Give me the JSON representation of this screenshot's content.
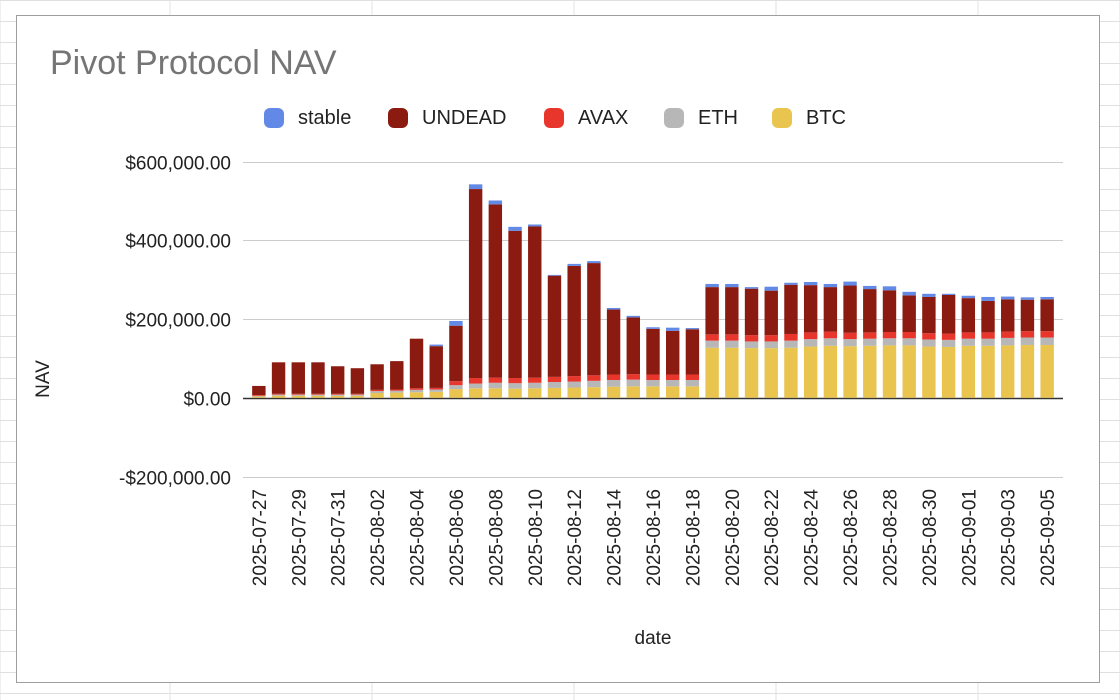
{
  "chart_data": {
    "type": "bar",
    "stacked": true,
    "title": "Pivot Protocol NAV",
    "xlabel": "date",
    "ylabel": "NAV",
    "ylim": [
      -200000,
      600000
    ],
    "yticks": [
      -200000,
      0,
      200000,
      400000,
      600000
    ],
    "ytick_labels": [
      "-$200,000.00",
      "$0.00",
      "$200,000.00",
      "$400,000.00",
      "$600,000.00"
    ],
    "grid": true,
    "legend_position": "top",
    "legend": [
      "stable",
      "UNDEAD",
      "AVAX",
      "ETH",
      "BTC"
    ],
    "x_tick_labels": [
      "2025-07-27",
      "2025-07-29",
      "2025-07-31",
      "2025-08-02",
      "2025-08-04",
      "2025-08-06",
      "2025-08-08",
      "2025-08-10",
      "2025-08-12",
      "2025-08-14",
      "2025-08-16",
      "2025-08-18",
      "2025-08-20",
      "2025-08-22",
      "2025-08-24",
      "2025-08-26",
      "2025-08-28",
      "2025-08-30",
      "2025-09-01",
      "2025-09-03",
      "2025-09-05"
    ],
    "categories": [
      "2025-07-27",
      "2025-07-28",
      "2025-07-29",
      "2025-07-30",
      "2025-07-31",
      "2025-08-01",
      "2025-08-02",
      "2025-08-03",
      "2025-08-04",
      "2025-08-05",
      "2025-08-06",
      "2025-08-07",
      "2025-08-08",
      "2025-08-09",
      "2025-08-10",
      "2025-08-11",
      "2025-08-12",
      "2025-08-13",
      "2025-08-14",
      "2025-08-15",
      "2025-08-16",
      "2025-08-17",
      "2025-08-18",
      "2025-08-19",
      "2025-08-20",
      "2025-08-21",
      "2025-08-22",
      "2025-08-23",
      "2025-08-24",
      "2025-08-25",
      "2025-08-26",
      "2025-08-27",
      "2025-08-28",
      "2025-08-29",
      "2025-08-30",
      "2025-08-31",
      "2025-09-01",
      "2025-09-02",
      "2025-09-03",
      "2025-09-04",
      "2025-09-05"
    ],
    "series": [
      {
        "name": "BTC",
        "color": "#e9c44f",
        "values": [
          3000,
          5000,
          5000,
          5000,
          5000,
          5000,
          12000,
          13000,
          14000,
          15000,
          22000,
          24000,
          24000,
          23000,
          24000,
          25000,
          26000,
          27000,
          28000,
          29000,
          29000,
          29000,
          29000,
          127000,
          127000,
          126000,
          126000,
          127000,
          130000,
          132000,
          131000,
          132000,
          133000,
          133000,
          130000,
          129000,
          132000,
          132000,
          133000,
          134000,
          134000
        ]
      },
      {
        "name": "ETH",
        "color": "#b7b7b7",
        "values": [
          2000,
          3000,
          3000,
          3000,
          3000,
          3000,
          5000,
          5000,
          6000,
          6000,
          10000,
          12000,
          14000,
          14000,
          14000,
          15000,
          15000,
          16000,
          17000,
          17000,
          16000,
          16000,
          16000,
          18000,
          18000,
          17000,
          17000,
          18000,
          19000,
          19000,
          18000,
          18000,
          18000,
          18000,
          18000,
          18000,
          18000,
          18000,
          19000,
          19000,
          19000
        ]
      },
      {
        "name": "AVAX",
        "color": "#e8362c",
        "values": [
          2000,
          2000,
          2000,
          2000,
          2000,
          2000,
          3000,
          3000,
          4000,
          4000,
          10000,
          14000,
          13000,
          13000,
          13000,
          13000,
          14000,
          14000,
          14000,
          14000,
          14000,
          14000,
          14000,
          16000,
          16000,
          16000,
          16000,
          17000,
          17000,
          17000,
          16000,
          16000,
          16000,
          16000,
          16000,
          16000,
          16000,
          16000,
          16000,
          16000,
          16000
        ]
      },
      {
        "name": "UNDEAD",
        "color": "#8b1a10",
        "values": [
          23000,
          80000,
          80000,
          80000,
          70000,
          65000,
          65000,
          72000,
          126000,
          106000,
          141000,
          480000,
          440000,
          374000,
          384000,
          257000,
          280000,
          285000,
          165000,
          144000,
          116000,
          111000,
          115000,
          120000,
          120000,
          118000,
          113000,
          125000,
          120000,
          113000,
          120000,
          110000,
          106000,
          93000,
          92000,
          98000,
          87000,
          80000,
          82000,
          80000,
          81000
        ]
      },
      {
        "name": "stable",
        "color": "#6189e5",
        "values": [
          0,
          0,
          0,
          0,
          0,
          0,
          0,
          0,
          0,
          4000,
          12000,
          12000,
          10000,
          10000,
          5000,
          2000,
          5000,
          5000,
          4000,
          4000,
          4000,
          8000,
          3000,
          8000,
          8000,
          4000,
          10000,
          5000,
          8000,
          8000,
          10000,
          8000,
          10000,
          9000,
          8000,
          3000,
          6000,
          10000,
          7000,
          6000,
          6000
        ]
      }
    ]
  },
  "legend_colors": {
    "stable": "#6189e5",
    "UNDEAD": "#8b1a10",
    "AVAX": "#e8362c",
    "ETH": "#b7b7b7",
    "BTC": "#e9c44f"
  }
}
